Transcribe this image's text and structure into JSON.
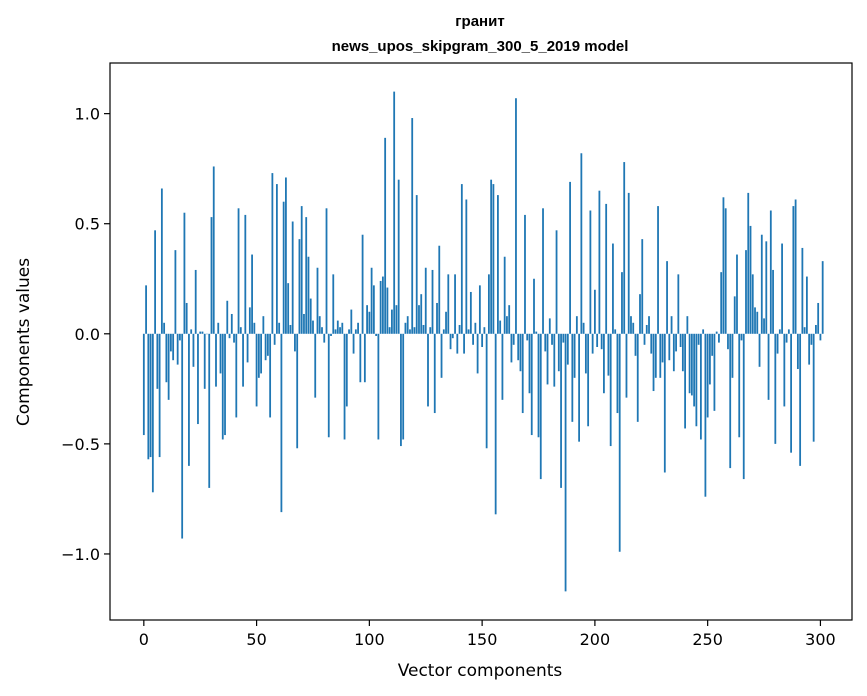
{
  "chart_data": {
    "type": "bar",
    "title": "гранит",
    "subtitle": "news_upos_skipgram_300_5_2019 model",
    "xlabel": "Vector components",
    "ylabel": "Components values",
    "xlim": [
      -15,
      314
    ],
    "ylim": [
      -1.3,
      1.23
    ],
    "x_ticks": [
      {
        "value": 0,
        "label": "0"
      },
      {
        "value": 50,
        "label": "50"
      },
      {
        "value": 100,
        "label": "100"
      },
      {
        "value": 150,
        "label": "150"
      },
      {
        "value": 200,
        "label": "200"
      },
      {
        "value": 250,
        "label": "250"
      },
      {
        "value": 300,
        "label": "300"
      }
    ],
    "y_ticks": [
      {
        "value": 1.0,
        "label": "1.0"
      },
      {
        "value": 0.5,
        "label": "0.5"
      },
      {
        "value": 0.0,
        "label": "0.0"
      },
      {
        "value": -0.5,
        "label": "−0.5"
      },
      {
        "value": -1.0,
        "label": "−1.0"
      }
    ],
    "bar_color": "#1f77b4",
    "bar_width": 0.8,
    "values": [
      -0.46,
      0.22,
      -0.57,
      -0.56,
      -0.72,
      0.47,
      -0.25,
      -0.56,
      0.66,
      0.05,
      -0.22,
      -0.3,
      -0.08,
      -0.12,
      0.38,
      -0.14,
      -0.03,
      -0.93,
      0.55,
      0.14,
      -0.6,
      0.02,
      -0.15,
      0.29,
      -0.41,
      0.01,
      0.01,
      -0.25,
      0.0,
      -0.7,
      0.53,
      0.76,
      -0.24,
      0.05,
      -0.18,
      -0.48,
      -0.46,
      0.15,
      -0.02,
      0.09,
      -0.04,
      -0.38,
      0.57,
      0.03,
      -0.24,
      0.54,
      -0.13,
      0.12,
      0.36,
      0.05,
      -0.33,
      -0.2,
      -0.18,
      0.08,
      -0.12,
      -0.1,
      -0.38,
      0.73,
      -0.05,
      0.68,
      0.05,
      -0.81,
      0.6,
      0.71,
      0.23,
      0.04,
      0.51,
      -0.08,
      -0.52,
      0.43,
      0.58,
      0.09,
      0.53,
      0.35,
      0.16,
      0.06,
      -0.29,
      0.3,
      0.08,
      0.03,
      -0.04,
      0.57,
      -0.47,
      -0.01,
      0.27,
      0.02,
      0.06,
      0.03,
      0.05,
      -0.48,
      -0.33,
      0.02,
      0.11,
      -0.09,
      0.02,
      0.05,
      -0.22,
      0.45,
      -0.22,
      0.13,
      0.1,
      0.3,
      0.22,
      -0.01,
      -0.48,
      0.24,
      0.26,
      0.89,
      0.21,
      0.03,
      0.11,
      1.1,
      0.13,
      0.7,
      -0.51,
      -0.48,
      0.05,
      0.08,
      0.02,
      0.98,
      0.03,
      0.63,
      0.13,
      0.18,
      0.04,
      0.3,
      -0.33,
      0.03,
      0.29,
      -0.36,
      0.14,
      0.4,
      -0.2,
      0.02,
      0.1,
      0.27,
      -0.07,
      -0.02,
      0.27,
      -0.09,
      0.04,
      0.68,
      -0.09,
      0.61,
      0.02,
      0.19,
      -0.05,
      0.05,
      -0.18,
      0.22,
      -0.06,
      0.03,
      -0.52,
      0.27,
      0.7,
      0.68,
      -0.82,
      0.63,
      0.06,
      -0.3,
      0.35,
      0.08,
      0.13,
      -0.13,
      -0.05,
      1.07,
      -0.12,
      -0.17,
      -0.36,
      0.54,
      -0.03,
      -0.27,
      -0.46,
      0.25,
      0.01,
      -0.47,
      -0.66,
      0.57,
      -0.08,
      -0.23,
      0.07,
      -0.05,
      -0.24,
      0.47,
      -0.17,
      -0.7,
      -0.04,
      -1.17,
      -0.14,
      0.69,
      -0.4,
      -0.2,
      0.08,
      -0.49,
      0.82,
      0.05,
      -0.18,
      -0.42,
      0.56,
      -0.09,
      0.2,
      -0.06,
      0.65,
      -0.07,
      -0.27,
      0.59,
      -0.19,
      -0.51,
      0.41,
      0.02,
      -0.36,
      -0.99,
      0.28,
      0.78,
      -0.29,
      0.64,
      0.08,
      0.05,
      -0.1,
      -0.4,
      0.18,
      0.43,
      -0.05,
      0.04,
      0.08,
      -0.09,
      -0.26,
      -0.2,
      0.58,
      -0.2,
      -0.13,
      -0.63,
      0.33,
      -0.12,
      0.08,
      -0.17,
      -0.08,
      0.27,
      -0.06,
      -0.17,
      -0.43,
      0.08,
      -0.27,
      -0.28,
      -0.33,
      -0.42,
      -0.05,
      -0.48,
      0.02,
      -0.74,
      -0.38,
      -0.23,
      -0.1,
      -0.35,
      0.01,
      -0.04,
      0.28,
      0.62,
      0.57,
      -0.07,
      -0.61,
      -0.2,
      0.17,
      0.36,
      -0.47,
      -0.03,
      -0.66,
      0.38,
      0.64,
      0.49,
      0.27,
      0.12,
      0.1,
      -0.15,
      0.45,
      0.07,
      0.42,
      -0.3,
      0.56,
      0.29,
      -0.5,
      -0.09,
      0.02,
      0.41,
      -0.33,
      -0.04,
      0.02,
      -0.54,
      0.58,
      0.61,
      -0.16,
      -0.6,
      0.39,
      0.03,
      0.26,
      -0.14,
      -0.05,
      -0.49,
      0.04,
      0.14,
      -0.03,
      0.33
    ]
  }
}
